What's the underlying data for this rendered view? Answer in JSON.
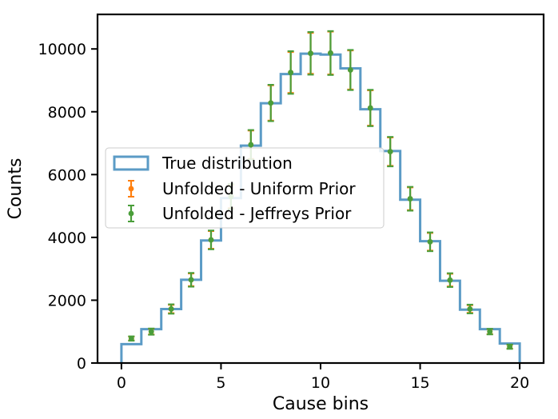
{
  "chart_data": {
    "type": "line",
    "xlabel": "Cause bins",
    "ylabel": "Counts",
    "xlim": [
      -1.2,
      21.2
    ],
    "ylim": [
      0,
      11100
    ],
    "xticks": [
      0,
      5,
      10,
      15,
      20
    ],
    "yticks": [
      0,
      2000,
      4000,
      6000,
      8000,
      10000
    ],
    "grid": false,
    "legend_position": "center-left",
    "bin_edges": [
      0,
      1,
      2,
      3,
      4,
      5,
      6,
      7,
      8,
      9,
      10,
      11,
      12,
      13,
      14,
      15,
      16,
      17,
      18,
      19,
      20
    ],
    "true_distribution": {
      "name": "True distribution",
      "color": "#5b9bc6",
      "values": [
        600,
        1080,
        1720,
        2650,
        3900,
        5250,
        6920,
        8270,
        9200,
        9850,
        9820,
        9380,
        8080,
        6750,
        5200,
        3880,
        2620,
        1700,
        1080,
        620
      ]
    },
    "series": [
      {
        "name": "Unfolded - Uniform Prior",
        "color": "#ff7f0e",
        "x": [
          0.5,
          1.5,
          2.5,
          3.5,
          4.5,
          5.5,
          6.5,
          7.5,
          8.5,
          9.5,
          10.5,
          11.5,
          12.5,
          13.5,
          14.5,
          15.5,
          16.5,
          17.5,
          18.5,
          19.5
        ],
        "y": [
          780,
          1000,
          1720,
          2650,
          3920,
          5300,
          6950,
          8280,
          9250,
          9860,
          9870,
          9330,
          8120,
          6730,
          5230,
          3860,
          2640,
          1720,
          1000,
          520
        ],
        "err": [
          60,
          90,
          130,
          200,
          280,
          370,
          450,
          560,
          650,
          650,
          680,
          620,
          560,
          450,
          360,
          280,
          200,
          120,
          80,
          60
        ]
      },
      {
        "name": "Unfolded - Jeffreys Prior",
        "color": "#4a9e3a",
        "x": [
          0.5,
          1.5,
          2.5,
          3.5,
          4.5,
          5.5,
          6.5,
          7.5,
          8.5,
          9.5,
          10.5,
          11.5,
          12.5,
          13.5,
          14.5,
          15.5,
          16.5,
          17.5,
          18.5,
          19.5
        ],
        "y": [
          780,
          1000,
          1720,
          2650,
          3920,
          5300,
          6950,
          8280,
          9250,
          9860,
          9870,
          9330,
          8120,
          6730,
          5230,
          3860,
          2640,
          1720,
          1000,
          520
        ],
        "err": [
          70,
          100,
          150,
          220,
          300,
          400,
          470,
          580,
          680,
          680,
          700,
          640,
          580,
          470,
          380,
          300,
          220,
          140,
          90,
          70
        ]
      }
    ]
  }
}
